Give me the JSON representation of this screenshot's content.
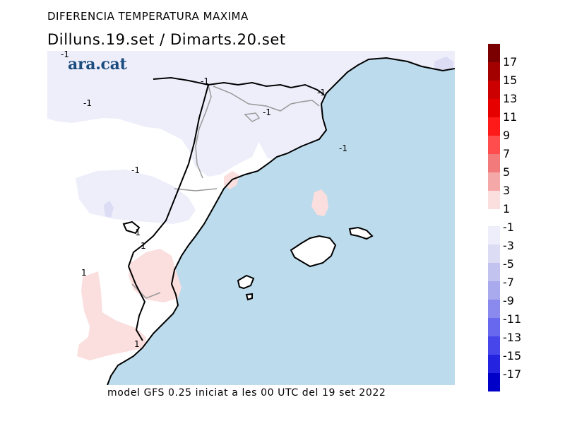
{
  "title": "DIFERENCIA TEMPERATURA MAXIMA",
  "subtitle": "Dilluns.19.set / Dimarts.20.set",
  "footer": "model GFS 0.25 iniciat a les 00 UTC del 19 set 2022",
  "logo": "ara.cat",
  "contour_labels": [
    "-1",
    "-1",
    "-1",
    "-1",
    "-1",
    "-1",
    "-1",
    "-1",
    "1",
    "1",
    "1"
  ],
  "legend": {
    "positive": [
      {
        "label": "17",
        "color": "#7a0000"
      },
      {
        "label": "15",
        "color": "#a30000"
      },
      {
        "label": "13",
        "color": "#cc0000"
      },
      {
        "label": "11",
        "color": "#e60000"
      },
      {
        "label": "9",
        "color": "#ff1a1a"
      },
      {
        "label": "7",
        "color": "#ff4d4d"
      },
      {
        "label": "5",
        "color": "#f27a7a"
      },
      {
        "label": "3",
        "color": "#f5a8a8"
      },
      {
        "label": "1",
        "color": "#fbdede"
      }
    ],
    "negative": [
      {
        "label": "-1",
        "color": "#eeeefb"
      },
      {
        "label": "-3",
        "color": "#dcdcf5"
      },
      {
        "label": "-5",
        "color": "#c3c3f0"
      },
      {
        "label": "-7",
        "color": "#a9a9ee"
      },
      {
        "label": "-9",
        "color": "#8a8aee"
      },
      {
        "label": "-11",
        "color": "#6868ee"
      },
      {
        "label": "-13",
        "color": "#4646ea"
      },
      {
        "label": "-15",
        "color": "#2323e0"
      },
      {
        "label": "-17",
        "color": "#0000c8"
      }
    ]
  },
  "colors": {
    "sea": "#bcdbec",
    "land": "#ffffff",
    "cool_area": "#eeeefb",
    "warm_area": "#fbdede",
    "coast": "#000000",
    "borders": "#999999"
  }
}
